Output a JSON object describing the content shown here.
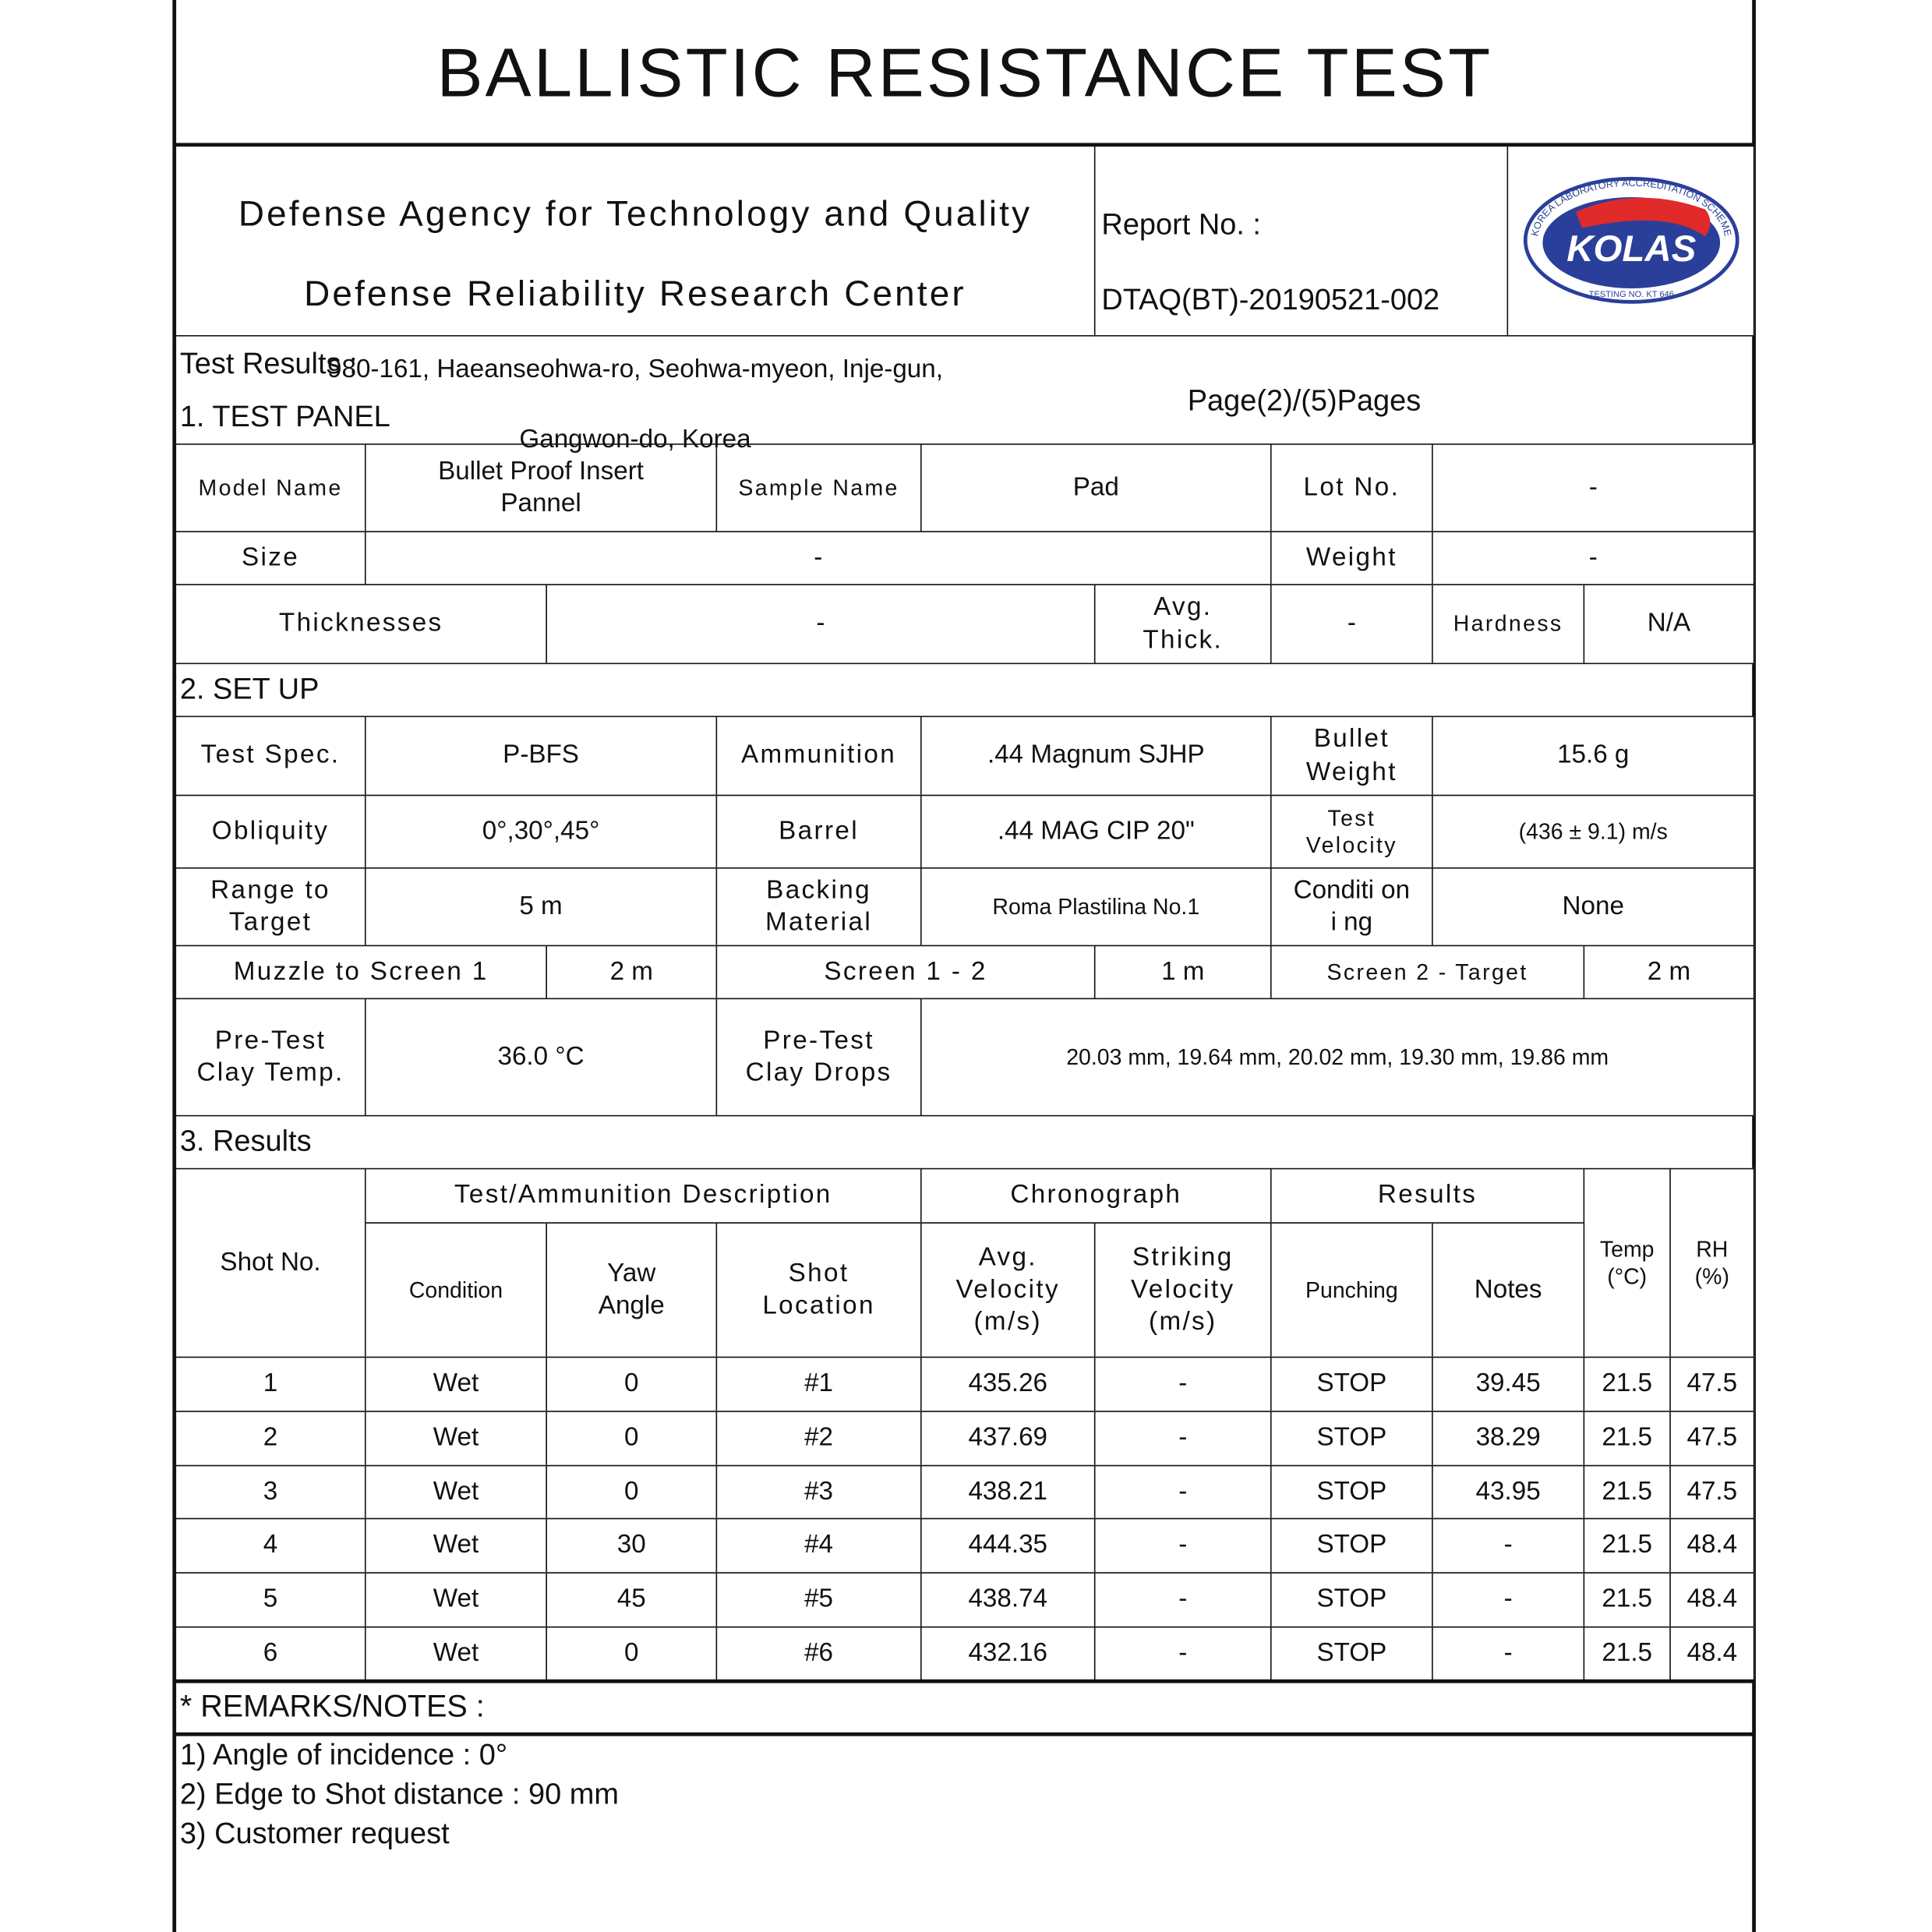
{
  "title": "BALLISTIC RESISTANCE TEST",
  "header": {
    "org_line1": "Defense Agency for Technology and Quality",
    "org_line2": "Defense Reliability Research Center",
    "address_line1": "980-161, Haeanseohwa-ro, Seohwa-myeon, Inje-gun,",
    "address_line2": "Gangwon-do, Korea",
    "report_label": "Report No. :",
    "report_no": "DTAQ(BT)-20190521-002",
    "page": "Page(2)/(5)Pages",
    "logo": {
      "text": "KOLAS",
      "ring_top": "KOREA LABORATORY ACCREDITATION SCHEME",
      "ring_bottom": "TESTING NO. KT 646",
      "colors": {
        "blue": "#2a3f9a",
        "red": "#e02a2a"
      }
    }
  },
  "test_results_label": "Test Results :",
  "panel": {
    "heading": "1. TEST PANEL",
    "model_name_label": "Model Name",
    "model_name": "Bullet Proof Insert\nPannel",
    "sample_name_label": "Sample Name",
    "sample_name": "Pad",
    "lot_no_label": "Lot No.",
    "lot_no": "-",
    "size_label": "Size",
    "size": "-",
    "weight_label": "Weight",
    "weight": "-",
    "thicknesses_label": "Thicknesses",
    "thicknesses": "-",
    "avg_thick_label": "Avg.\nThick.",
    "avg_thick": "-",
    "hardness_label": "Hardness",
    "hardness": "N/A"
  },
  "setup": {
    "heading": "2. SET UP",
    "test_spec_label": "Test Spec.",
    "test_spec": "P-BFS",
    "ammunition_label": "Ammunition",
    "ammunition": ".44 Magnum SJHP",
    "bullet_weight_label": "Bullet\nWeight",
    "bullet_weight": "15.6 g",
    "obliquity_label": "Obliquity",
    "obliquity": "0°,30°,45°",
    "barrel_label": "Barrel",
    "barrel": ".44 MAG CIP 20\"",
    "test_velocity_label": "Test\nVelocity",
    "test_velocity": "(436 ± 9.1) m/s",
    "range_label": "Range to\nTarget",
    "range": "5 m",
    "backing_label": "Backing\nMaterial",
    "backing": "Roma Plastilina No.1",
    "conditioning_label": "Conditi on\ni ng",
    "conditioning": "None",
    "muzzle_label": "Muzzle to Screen 1",
    "muzzle": "2 m",
    "screen12_label": "Screen 1 - 2",
    "screen12": "1 m",
    "screen2t_label": "Screen 2 - Target",
    "screen2t": "2 m",
    "clay_temp_label": "Pre-Test\nClay Temp.",
    "clay_temp": "36.0        °C",
    "clay_drops_label": "Pre-Test\nClay Drops",
    "clay_drops": "20.03 mm,  19.64 mm,  20.02 mm,  19.30 mm,  19.86 mm"
  },
  "results": {
    "heading": "3. Results",
    "headers": {
      "shot_no": "Shot No.",
      "group_desc": "Test/Ammunition Description",
      "group_chrono": "Chronograph",
      "group_results": "Results",
      "temp": "Temp\n(°C)",
      "rh": "RH\n(%)",
      "condition": "Condition",
      "yaw": "Yaw\nAngle",
      "location": "Shot\nLocation",
      "avg_vel": "Avg.\nVelocity\n(m/s)",
      "strike_vel": "Striking\nVelocity\n(m/s)",
      "punching": "Punching",
      "notes": "Notes"
    },
    "rows": [
      {
        "shot": "1",
        "condition": "Wet",
        "yaw": "0",
        "location": "#1",
        "avg_vel": "435.26",
        "strike_vel": "-",
        "punching": "STOP",
        "notes": "39.45",
        "temp": "21.5",
        "rh": "47.5"
      },
      {
        "shot": "2",
        "condition": "Wet",
        "yaw": "0",
        "location": "#2",
        "avg_vel": "437.69",
        "strike_vel": "-",
        "punching": "STOP",
        "notes": "38.29",
        "temp": "21.5",
        "rh": "47.5"
      },
      {
        "shot": "3",
        "condition": "Wet",
        "yaw": "0",
        "location": "#3",
        "avg_vel": "438.21",
        "strike_vel": "-",
        "punching": "STOP",
        "notes": "43.95",
        "temp": "21.5",
        "rh": "47.5"
      },
      {
        "shot": "4",
        "condition": "Wet",
        "yaw": "30",
        "location": "#4",
        "avg_vel": "444.35",
        "strike_vel": "-",
        "punching": "STOP",
        "notes": "-",
        "temp": "21.5",
        "rh": "48.4"
      },
      {
        "shot": "5",
        "condition": "Wet",
        "yaw": "45",
        "location": "#5",
        "avg_vel": "438.74",
        "strike_vel": "-",
        "punching": "STOP",
        "notes": "-",
        "temp": "21.5",
        "rh": "48.4"
      },
      {
        "shot": "6",
        "condition": "Wet",
        "yaw": "0",
        "location": "#6",
        "avg_vel": "432.16",
        "strike_vel": "-",
        "punching": "STOP",
        "notes": "-",
        "temp": "21.5",
        "rh": "48.4"
      }
    ]
  },
  "remarks": {
    "heading": "* REMARKS/NOTES :",
    "items": [
      "1) Angle of incidence : 0°",
      "2) Edge to Shot distance : 90 mm",
      "3) Customer request"
    ]
  }
}
